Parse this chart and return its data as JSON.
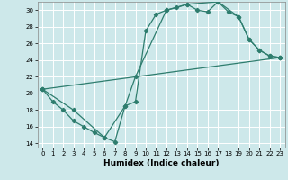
{
  "xlabel": "Humidex (Indice chaleur)",
  "bg_color": "#cde8ea",
  "grid_color": "#b0d4d8",
  "line_color": "#2e7d6e",
  "xlim": [
    -0.5,
    23.5
  ],
  "ylim": [
    13.5,
    31.0
  ],
  "xticks": [
    0,
    1,
    2,
    3,
    4,
    5,
    6,
    7,
    8,
    9,
    10,
    11,
    12,
    13,
    14,
    15,
    16,
    17,
    18,
    19,
    20,
    21,
    22,
    23
  ],
  "yticks": [
    14,
    16,
    18,
    20,
    22,
    24,
    26,
    28,
    30
  ],
  "line1_x": [
    0,
    1,
    2,
    3,
    4,
    5,
    6,
    7,
    8,
    9,
    10,
    11,
    12,
    13,
    14,
    15,
    16,
    17,
    18,
    19,
    20,
    21,
    22,
    23
  ],
  "line1_y": [
    20.5,
    19.0,
    18.0,
    16.7,
    16.0,
    15.3,
    14.7,
    14.2,
    18.5,
    19.0,
    27.5,
    29.5,
    30.0,
    30.3,
    30.7,
    30.0,
    29.8,
    31.0,
    29.8,
    29.2,
    26.5,
    25.2,
    24.5,
    24.3
  ],
  "line2_x": [
    0,
    3,
    6,
    8,
    9,
    12,
    14,
    17,
    19,
    20,
    21,
    22,
    23
  ],
  "line2_y": [
    20.5,
    18.0,
    14.7,
    18.5,
    22.0,
    30.0,
    30.7,
    31.0,
    29.2,
    26.5,
    25.2,
    24.5,
    24.3
  ],
  "line3_x": [
    0,
    23
  ],
  "line3_y": [
    20.5,
    24.3
  ]
}
